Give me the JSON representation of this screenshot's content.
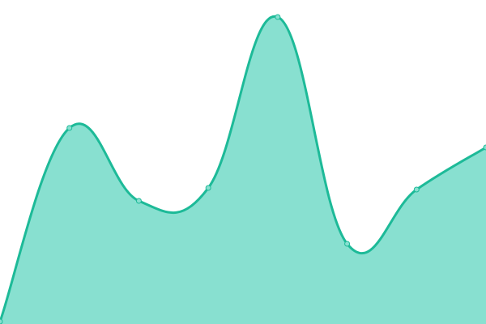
{
  "chart_data": {
    "type": "area",
    "categories": [
      null,
      null,
      null,
      null,
      null,
      null,
      null,
      null
    ],
    "series": [
      {
        "color": "#1dba98",
        "fill": "#88e0d0",
        "values": [
          3,
          242,
          152,
          168,
          379,
          99,
          166,
          218
        ]
      }
    ],
    "ylim": [
      0,
      400
    ]
  }
}
